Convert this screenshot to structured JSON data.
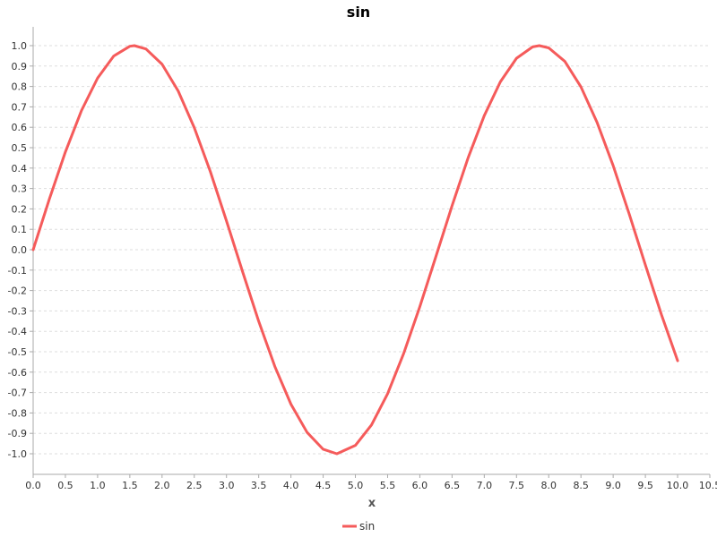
{
  "chart_data": {
    "type": "line",
    "title": "sin",
    "xlabel": "x",
    "ylabel": "",
    "xlim": [
      0.0,
      10.5
    ],
    "ylim": [
      -1.05,
      1.1
    ],
    "grid": true,
    "legend_placement": "bottom-center",
    "x_ticks": [
      "0.0",
      "0.5",
      "1.0",
      "1.5",
      "2.0",
      "2.5",
      "3.0",
      "3.5",
      "4.0",
      "4.5",
      "5.0",
      "5.5",
      "6.0",
      "6.5",
      "7.0",
      "7.5",
      "8.0",
      "8.5",
      "9.0",
      "9.5",
      "10.0",
      "10.5"
    ],
    "y_ticks": [
      "1.0",
      "0.9",
      "0.8",
      "0.7",
      "0.6",
      "0.5",
      "0.4",
      "0.3",
      "0.2",
      "0.1",
      "0.0",
      "-0.1",
      "-0.2",
      "-0.3",
      "-0.4",
      "-0.5",
      "-0.6",
      "-0.7",
      "-0.8",
      "-0.9",
      "-1.0"
    ],
    "series": [
      {
        "name": "sin",
        "color": "#f55b5b",
        "x": [
          0.0,
          0.25,
          0.5,
          0.75,
          1.0,
          1.25,
          1.5,
          1.5708,
          1.75,
          2.0,
          2.25,
          2.5,
          2.75,
          3.0,
          3.25,
          3.5,
          3.75,
          4.0,
          4.25,
          4.5,
          4.7124,
          5.0,
          5.25,
          5.5,
          5.75,
          6.0,
          6.25,
          6.5,
          6.75,
          7.0,
          7.25,
          7.5,
          7.75,
          7.854,
          8.0,
          8.25,
          8.5,
          8.75,
          9.0,
          9.25,
          9.5,
          9.75,
          10.0
        ],
        "y": [
          0.0,
          0.247,
          0.479,
          0.682,
          0.841,
          0.949,
          0.997,
          1.0,
          0.984,
          0.909,
          0.778,
          0.598,
          0.382,
          0.141,
          -0.108,
          -0.351,
          -0.572,
          -0.757,
          -0.895,
          -0.978,
          -1.0,
          -0.959,
          -0.859,
          -0.706,
          -0.508,
          -0.279,
          -0.033,
          0.215,
          0.451,
          0.657,
          0.823,
          0.938,
          0.994,
          1.0,
          0.989,
          0.923,
          0.798,
          0.624,
          0.412,
          0.174,
          -0.075,
          -0.319,
          -0.544
        ]
      }
    ]
  }
}
